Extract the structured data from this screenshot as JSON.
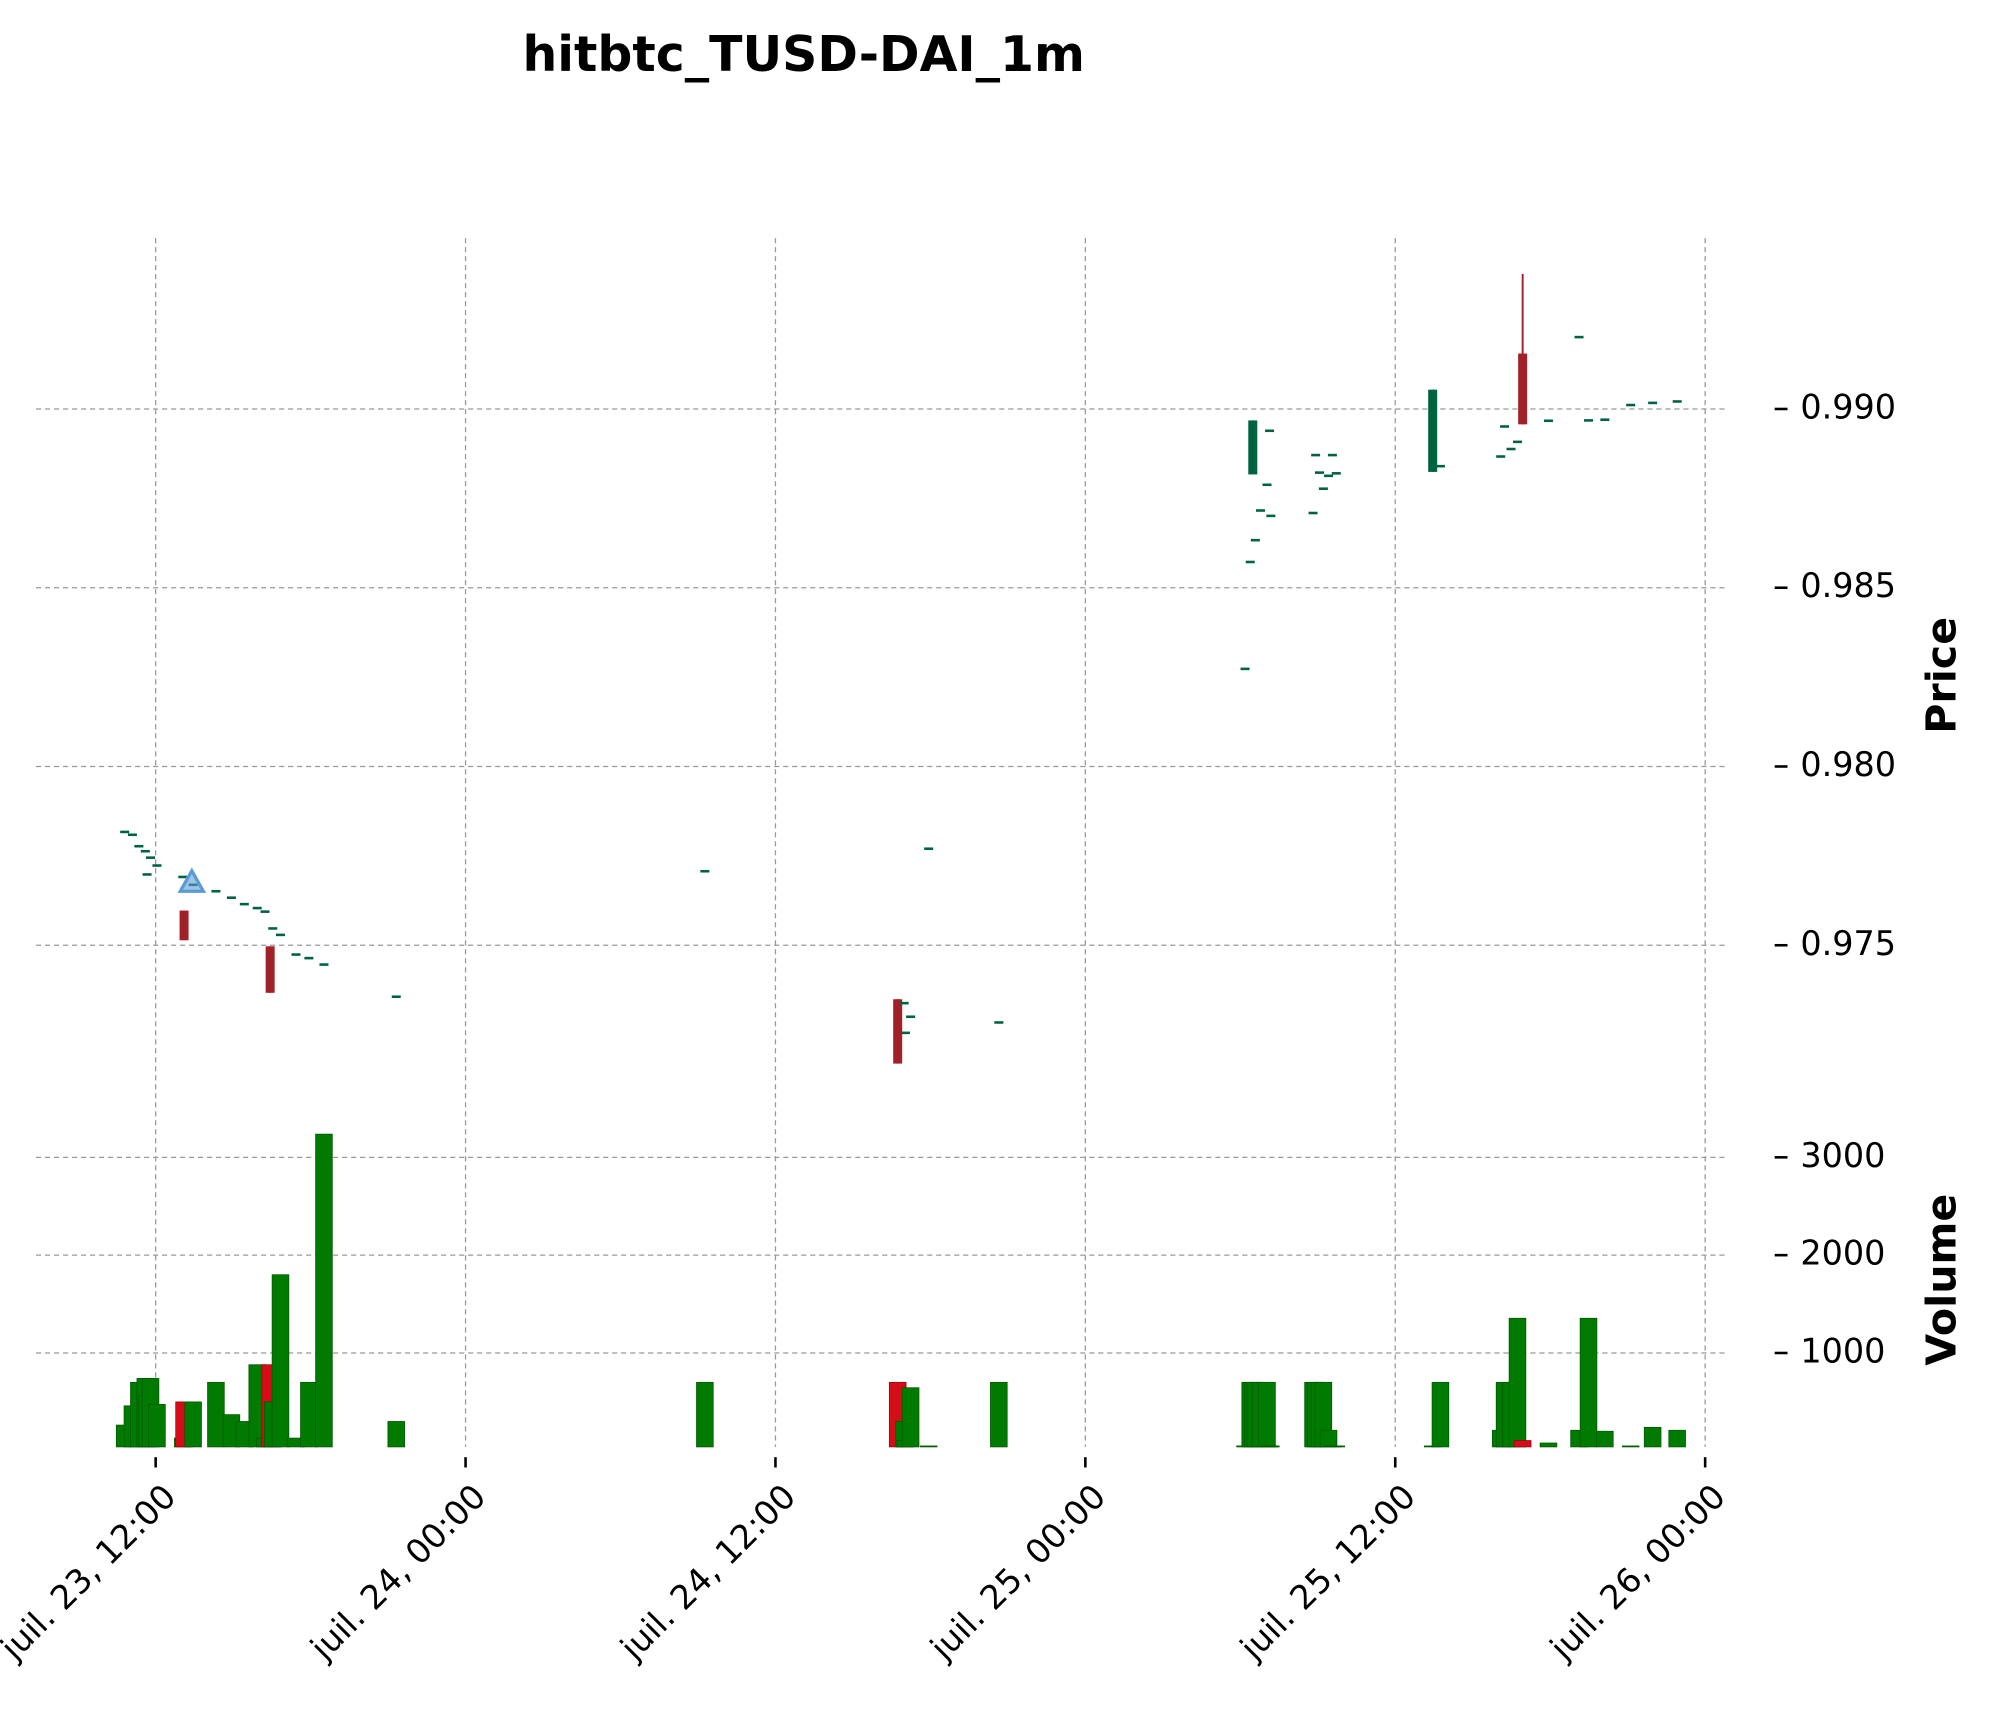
{
  "chart_data": {
    "type": "candlestick",
    "title": "hitbtc_TUSD-DAI_1m",
    "ylabel": "Price",
    "volume_label": "Volume",
    "x": [
      "juil. 23, 10:48",
      "juil. 23, 11:06",
      "juil. 23, 11:21",
      "juil. 23, 11:36",
      "juil. 23, 11:40",
      "juil. 23, 11:48",
      "juil. 23, 12:03",
      "juil. 23, 13:03",
      "juil. 23, 13:06",
      "juil. 23, 13:27",
      "juil. 23, 14:20",
      "juil. 23, 14:56",
      "juil. 23, 15:26",
      "juil. 23, 15:56",
      "juil. 23, 16:14",
      "juil. 23, 16:26",
      "juil. 23, 16:32",
      "juil. 23, 16:50",
      "juil. 23, 17:26",
      "juil. 23, 17:56",
      "juil. 23, 18:31",
      "juil. 23, 21:19",
      "juil. 24, 09:16",
      "juil. 24, 16:44",
      "juil. 24, 16:59",
      "juil. 24, 17:02",
      "juil. 24, 17:14",
      "juil. 24, 17:56",
      "juil. 24, 20:39",
      "juil. 25, 06:11",
      "juil. 25, 06:23",
      "juil. 25, 06:29",
      "juil. 25, 06:35",
      "juil. 25, 06:47",
      "juil. 25, 07:02",
      "juil. 25, 07:08",
      "juil. 25, 07:11",
      "juil. 25, 08:49",
      "juil. 25, 08:55",
      "juil. 25, 09:04",
      "juil. 25, 09:13",
      "juil. 25, 09:25",
      "juil. 25, 09:34",
      "juil. 25, 09:43",
      "juil. 25, 13:27",
      "juil. 25, 13:45",
      "juil. 25, 16:05",
      "juil. 25, 16:14",
      "juil. 25, 16:29",
      "juil. 25, 16:44",
      "juil. 25, 16:56",
      "juil. 25, 17:56",
      "juil. 25, 19:07",
      "juil. 25, 19:29",
      "juil. 25, 20:07",
      "juil. 25, 21:07",
      "juil. 25, 21:58",
      "juil. 25, 22:55"
    ],
    "open": [
      0.97817,
      0.97809,
      0.97777,
      0.97763,
      0.97698,
      0.97745,
      0.97723,
      0.97691,
      0.97597,
      0.97669,
      0.97651,
      0.97633,
      0.97615,
      0.97604,
      0.97594,
      0.97497,
      0.97547,
      0.97529,
      0.97474,
      0.97464,
      0.97446,
      0.97356,
      0.97705,
      0.97349,
      0.97338,
      0.97255,
      0.97298,
      0.9777,
      0.97284,
      0.98273,
      0.98572,
      0.98817,
      0.98633,
      0.98716,
      0.98788,
      0.98939,
      0.98701,
      0.98709,
      0.98871,
      0.9882,
      0.98777,
      0.98813,
      0.98871,
      0.9882,
      0.98824,
      0.98838,
      0.98867,
      0.98949,
      0.98888,
      0.98906,
      0.99155,
      0.98966,
      0.99201,
      0.98968,
      0.98969,
      0.99011,
      0.99016,
      0.9902
    ],
    "high": [
      0.97817,
      0.97809,
      0.97777,
      0.97763,
      0.97698,
      0.97745,
      0.97723,
      0.97691,
      0.97597,
      0.97669,
      0.97651,
      0.97633,
      0.97615,
      0.97604,
      0.97594,
      0.97497,
      0.97547,
      0.97529,
      0.97474,
      0.97464,
      0.97446,
      0.97356,
      0.97709,
      0.97349,
      0.97338,
      0.97255,
      0.97302,
      0.9777,
      0.97284,
      0.98273,
      0.98572,
      0.98968,
      0.98633,
      0.98716,
      0.98788,
      0.98939,
      0.98701,
      0.98709,
      0.98871,
      0.98824,
      0.98777,
      0.98813,
      0.98871,
      0.9882,
      0.99054,
      0.98842,
      0.98867,
      0.98953,
      0.98888,
      0.9891,
      0.99378,
      0.98968,
      0.99201,
      0.98968,
      0.98971,
      0.99011,
      0.99018,
      0.99022
    ],
    "low": [
      0.97817,
      0.97809,
      0.97777,
      0.97763,
      0.97698,
      0.97745,
      0.97723,
      0.97691,
      0.97514,
      0.97669,
      0.97651,
      0.97633,
      0.97615,
      0.97604,
      0.97594,
      0.97367,
      0.97547,
      0.97529,
      0.97474,
      0.97464,
      0.97446,
      0.97356,
      0.97705,
      0.97169,
      0.97338,
      0.97255,
      0.97298,
      0.9777,
      0.97284,
      0.98273,
      0.98572,
      0.98817,
      0.98633,
      0.98716,
      0.98788,
      0.98939,
      0.98701,
      0.98709,
      0.98871,
      0.9882,
      0.98777,
      0.98813,
      0.98871,
      0.9882,
      0.98824,
      0.98838,
      0.98867,
      0.98949,
      0.98888,
      0.98906,
      0.98957,
      0.98966,
      0.99201,
      0.98968,
      0.98969,
      0.99011,
      0.99016,
      0.9902
    ],
    "close": [
      0.97817,
      0.97809,
      0.97777,
      0.97763,
      0.97698,
      0.97745,
      0.97723,
      0.97691,
      0.97514,
      0.97669,
      0.97651,
      0.97633,
      0.97615,
      0.97604,
      0.97594,
      0.97367,
      0.97547,
      0.97529,
      0.97474,
      0.97464,
      0.97446,
      0.97356,
      0.97709,
      0.97169,
      0.97338,
      0.97255,
      0.97302,
      0.9777,
      0.97284,
      0.98273,
      0.98572,
      0.98968,
      0.98633,
      0.98716,
      0.98788,
      0.98939,
      0.98701,
      0.98709,
      0.98871,
      0.98824,
      0.98777,
      0.98813,
      0.98871,
      0.9882,
      0.99054,
      0.98842,
      0.98867,
      0.98953,
      0.98888,
      0.9891,
      0.98957,
      0.98968,
      0.99201,
      0.98968,
      0.98971,
      0.99011,
      0.99018,
      0.99022
    ],
    "volume": [
      263,
      460,
      700,
      740,
      565,
      740,
      475,
      130,
      500,
      500,
      700,
      370,
      300,
      880,
      130,
      880,
      500,
      1800,
      130,
      700,
      3237,
      300,
      700,
      700,
      300,
      105,
      645,
      50,
      700,
      50,
      700,
      700,
      700,
      700,
      700,
      50,
      50,
      700,
      700,
      700,
      700,
      210,
      50,
      50,
      50,
      700,
      210,
      700,
      700,
      1355,
      105,
      80,
      210,
      1355,
      200,
      50,
      240,
      210
    ],
    "xlim": [
      "juil. 23, 07:22",
      "juil. 26, 00:45"
    ],
    "xticks": [
      "juil. 23, 12:00",
      "juil. 24, 00:00",
      "juil. 24, 12:00",
      "juil. 25, 00:00",
      "juil. 25, 12:00",
      "juil. 26, 00:00"
    ],
    "ylim": [
      0.97086,
      0.99478
    ],
    "yticks": [
      {
        "value": 0.99,
        "label": "0.990"
      },
      0.985,
      {
        "value": 0.98,
        "label": "0.980"
      },
      0.975
    ],
    "volume_ylim": [
      40,
      3300
    ],
    "volume_yticks": [
      1000,
      2000,
      3000
    ],
    "up_color": "#006340",
    "down_color": "#a02128",
    "volume_up_color": "#007a00",
    "volume_down_color": "#d50d18",
    "grid": true,
    "markers": {
      "x": [
        "juil. 23, 13:24"
      ],
      "values": [
        0.97676
      ],
      "color": "#5b9bd5"
    }
  }
}
